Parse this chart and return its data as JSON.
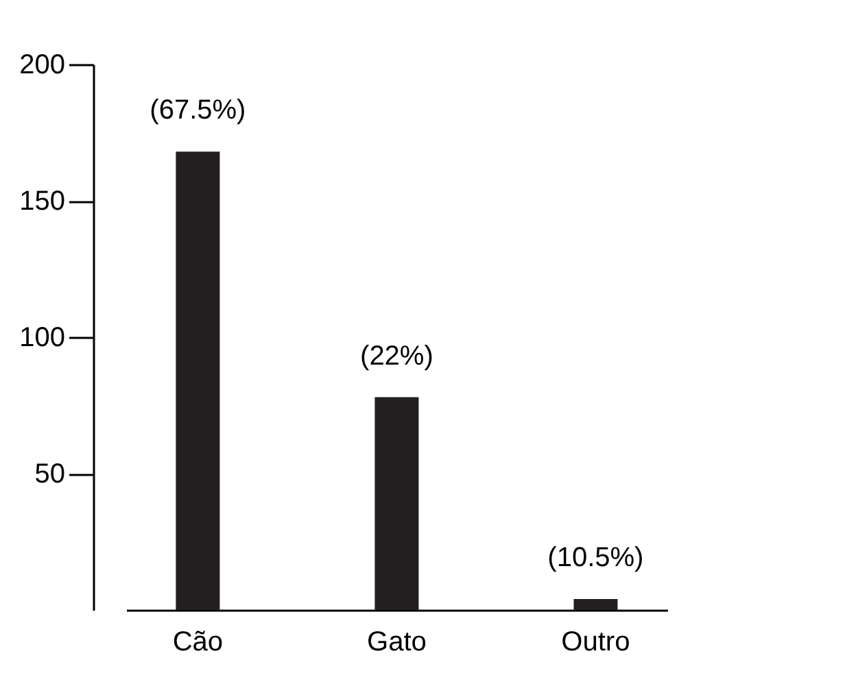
{
  "chart_data": {
    "type": "bar",
    "categories": [
      "Cão",
      "Gato",
      "Outro"
    ],
    "values": [
      168,
      78,
      4
    ],
    "annotations": [
      {
        "text": "(67.5%)",
        "x": "Cão",
        "y": 168
      },
      {
        "text": "(22%)",
        "x": "Gato",
        "y": 78
      },
      {
        "text": "(10.5%)",
        "x": "Outro",
        "y": 4
      }
    ],
    "color": "#231f20",
    "ylim": [
      0,
      200
    ],
    "yticks": [
      50,
      100,
      150,
      200
    ],
    "grid": false
  }
}
